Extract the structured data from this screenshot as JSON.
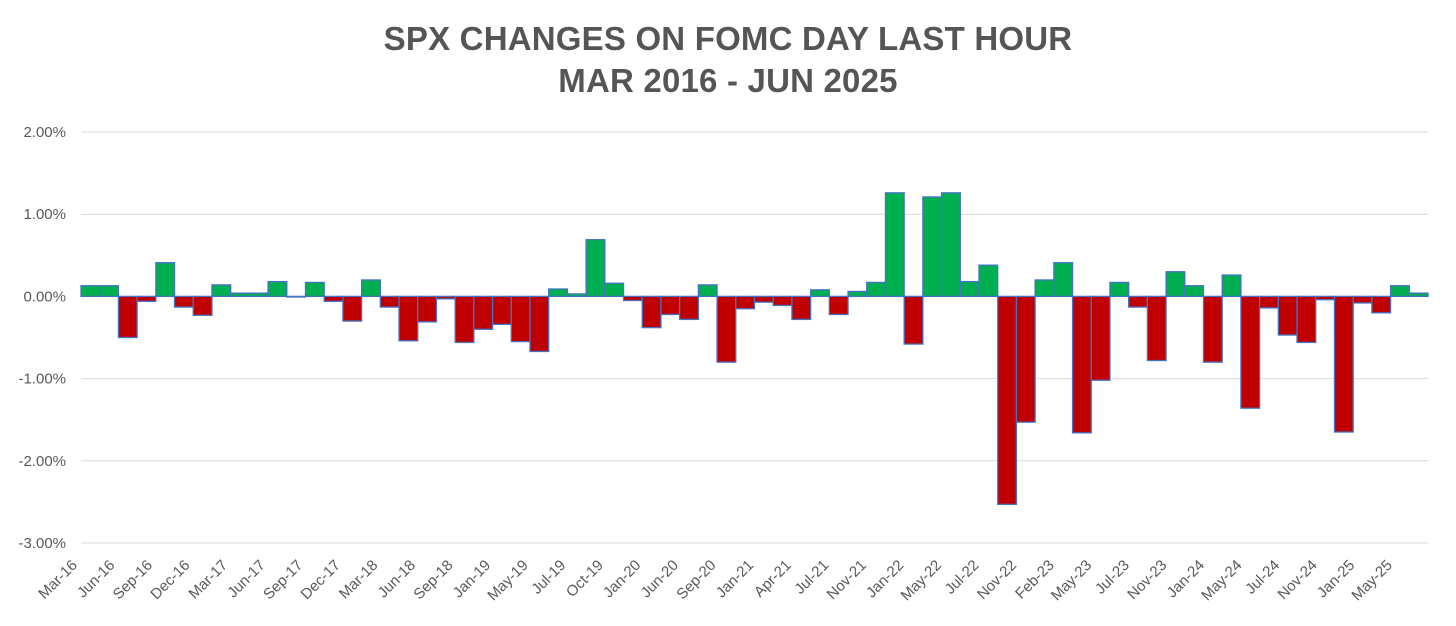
{
  "chart_data": {
    "type": "bar",
    "title_line1": "SPX CHANGES ON FOMC DAY LAST HOUR",
    "title_line2": "MAR 2016 - JUN 2025",
    "xlabel": "",
    "ylabel": "",
    "ylim": [
      -3.0,
      2.0
    ],
    "yticks": [
      2.0,
      1.0,
      0.0,
      -1.0,
      -2.0,
      -3.0
    ],
    "ytick_labels": [
      "2.00%",
      "1.00%",
      "0.00%",
      "-1.00%",
      "-2.00%",
      "-3.00%"
    ],
    "grid": true,
    "legend": "none",
    "colors": {
      "positive": "#00B050",
      "negative": "#C00000",
      "bar_outline": "#4472C4",
      "gridline": "#D9D9D9",
      "text": "#595959",
      "title": "#555555"
    },
    "xtick_labels": [
      "Mar-16",
      "Jun-16",
      "Sep-16",
      "Dec-16",
      "Mar-17",
      "Jun-17",
      "Sep-17",
      "Dec-17",
      "Mar-18",
      "Jun-18",
      "Sep-18",
      "Jan-19",
      "May-19",
      "Jul-19",
      "Oct-19",
      "Jan-20",
      "Jun-20",
      "Sep-20",
      "Jan-21",
      "Apr-21",
      "Jul-21",
      "Nov-21",
      "Jan-22",
      "May-22",
      "Jul-22",
      "Nov-22",
      "Feb-23",
      "May-23",
      "Jul-23",
      "Nov-23",
      "Jan-24",
      "May-24",
      "Jul-24",
      "Nov-24",
      "Jan-25",
      "May-25"
    ],
    "values": [
      0.13,
      0.13,
      -0.5,
      -0.06,
      0.41,
      -0.13,
      -0.23,
      0.14,
      0.04,
      0.04,
      0.18,
      0.0,
      0.17,
      -0.06,
      -0.3,
      0.2,
      -0.13,
      -0.54,
      -0.31,
      -0.03,
      -0.56,
      -0.4,
      -0.34,
      -0.55,
      -0.67,
      0.09,
      0.03,
      0.69,
      0.16,
      -0.05,
      -0.38,
      -0.22,
      -0.28,
      0.14,
      -0.8,
      -0.15,
      -0.07,
      -0.11,
      -0.28,
      0.08,
      -0.22,
      0.06,
      0.17,
      1.26,
      -0.58,
      1.21,
      1.26,
      0.18,
      0.38,
      -2.53,
      -1.53,
      0.2,
      0.41,
      -1.66,
      -1.02,
      0.17,
      -0.13,
      -0.78,
      0.3,
      0.13,
      -0.8,
      0.26,
      -1.36,
      -0.14,
      -0.47,
      -0.56,
      -0.04,
      -1.65,
      -0.08,
      -0.2,
      0.13,
      0.04
    ]
  }
}
